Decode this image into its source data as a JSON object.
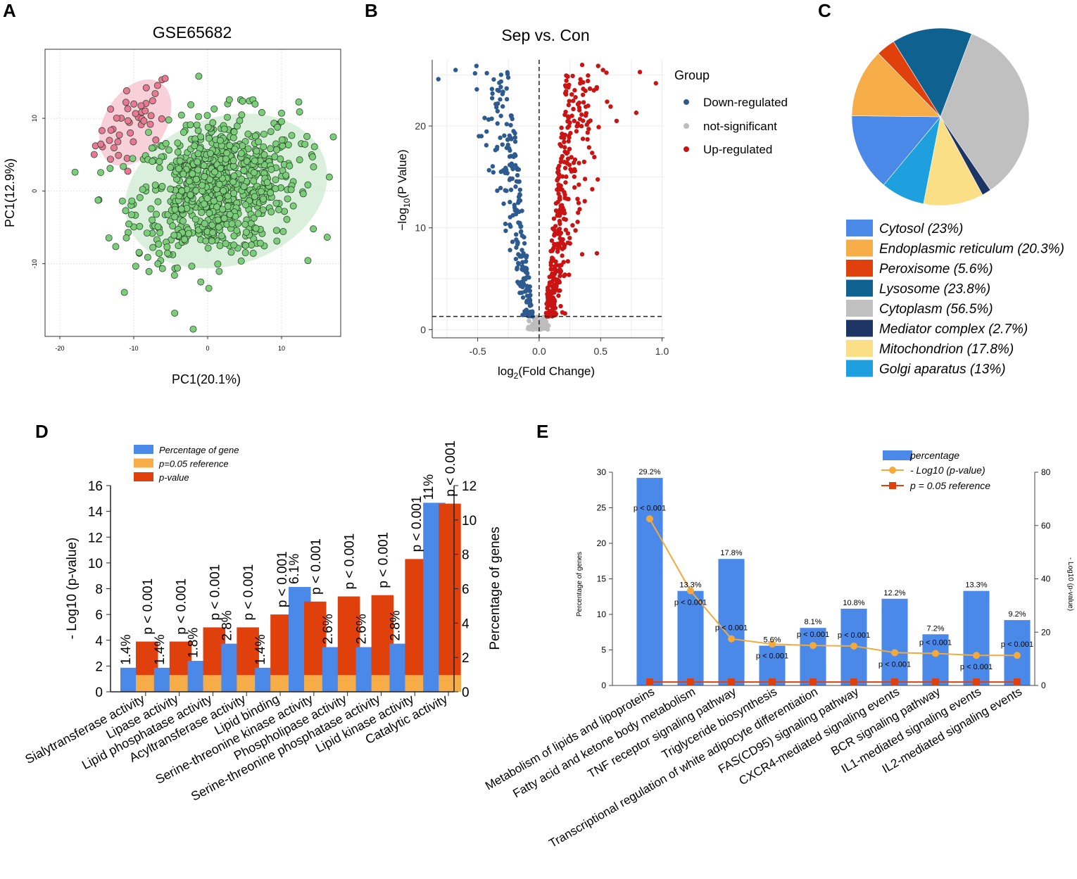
{
  "chart_data": [
    {
      "id": "A",
      "type": "scatter",
      "letter": "A",
      "title": "GSE65682",
      "xlabel": "PC1(20.1%)",
      "ylabel": "PC1(12.9%)",
      "xlim": [
        -22,
        18
      ],
      "ylim": [
        -20,
        19.5
      ],
      "xticks": [
        -20,
        -10,
        0,
        10
      ],
      "yticks": [
        10,
        0,
        -10
      ],
      "xtick_labels": [
        "-20",
        "-10",
        "0",
        "10"
      ],
      "ytick_labels": [
        "10",
        "0",
        "-10"
      ],
      "grid": true,
      "groups": [
        {
          "name": "pink cluster",
          "color": "#e87896",
          "ellipse_color": "#f4c0cc",
          "n_points": 45,
          "center": [
            -10,
            9.5
          ],
          "spread": [
            2.6,
            2.4
          ],
          "ellipse": {
            "cx": -9.8,
            "cy": 9.4,
            "rx": 6.4,
            "ry": 4.2,
            "angle_deg": 58
          }
        },
        {
          "name": "green cluster",
          "color": "#7ccc7c",
          "ellipse_color": "#cdebd1",
          "n_points": 760,
          "center": [
            1.2,
            0.5
          ],
          "spread": [
            5.5,
            4.8
          ],
          "ellipse": {
            "cx": 2.5,
            "cy": 0.0,
            "rx": 14.0,
            "ry": 10.2,
            "angle_deg": 18
          }
        }
      ]
    },
    {
      "id": "B",
      "type": "scatter",
      "letter": "B",
      "title": "Sep vs. Con",
      "xlabel": "log2(Fold Change)",
      "xlabel_main": "log",
      "xlabel_sub": "2",
      "xlabel_rest": "(Fold Change)",
      "ylabel": "-log10(P Value)",
      "ylabel_main": "−log",
      "ylabel_sub": "10",
      "ylabel_rest": "(P Value)",
      "xlim": [
        -0.87,
        1.02
      ],
      "ylim": [
        -0.8,
        26.5
      ],
      "xticks": [
        -0.5,
        0.0,
        0.5,
        1.0
      ],
      "xtick_labels": [
        "-0.5",
        "0.0",
        "0.5",
        "1.0"
      ],
      "yticks": [
        0,
        10,
        20
      ],
      "ytick_labels": [
        "0",
        "10",
        "20"
      ],
      "threshold_y": 1.3,
      "threshold_x": 0,
      "legend_title": "Group",
      "series": [
        {
          "name": "Down-regulated",
          "color": "#2e5b8f",
          "n_points": 230
        },
        {
          "name": "not-significant",
          "color": "#bdbdbd",
          "n_points": 80
        },
        {
          "name": "Up-regulated",
          "color": "#c91414",
          "n_points": 330
        }
      ],
      "outliers": [
        {
          "x": -0.82,
          "y": 24.6
        },
        {
          "x": -0.68,
          "y": 25.5
        },
        {
          "x": -0.51,
          "y": 25.9
        },
        {
          "x": -0.49,
          "y": 19.0
        },
        {
          "x": 0.35,
          "y": 26.0
        },
        {
          "x": 0.48,
          "y": 25.9
        },
        {
          "x": 0.52,
          "y": 25.5
        },
        {
          "x": 0.82,
          "y": 25.3
        },
        {
          "x": 0.95,
          "y": 24.2
        },
        {
          "x": 0.79,
          "y": 21.3
        },
        {
          "x": 0.63,
          "y": 20.5
        },
        {
          "x": 0.47,
          "y": 7.5
        },
        {
          "x": 0.35,
          "y": 7.4
        }
      ]
    },
    {
      "id": "C",
      "type": "pie",
      "letter": "C",
      "slices": [
        {
          "label": "Cytosol (23%)",
          "value": 23,
          "color": "#4a89e8"
        },
        {
          "label": "Endoplasmic reticulum (20.3%)",
          "value": 20.3,
          "color": "#f7ad47"
        },
        {
          "label": "Peroxisome (5.6%)",
          "value": 5.6,
          "color": "#e0400c"
        },
        {
          "label": "Lysosome (23.8%)",
          "value": 23.8,
          "color": "#0f6290"
        },
        {
          "label": "Cytoplasm (56.5%)",
          "value": 56.5,
          "color": "#c0c0c0"
        },
        {
          "label": "Mediator complex (2.7%)",
          "value": 2.7,
          "color": "#1d3564"
        },
        {
          "label": "Mitochondrion (17.8%)",
          "value": 17.8,
          "color": "#fbdf86"
        },
        {
          "label": "Golgi aparatus (13%)",
          "value": 13,
          "color": "#1ea0de"
        }
      ],
      "draw_order": [
        3,
        4,
        5,
        6,
        7,
        0,
        1,
        2
      ],
      "start_angle_deg": 238
    },
    {
      "id": "D",
      "type": "bar",
      "letter": "D",
      "categories": [
        "Sialytransferase activity",
        "Lipase activity",
        "Lipid phosphatase activity",
        "Acyltransferase activity",
        "Lipid binding",
        "Serine-threonine kinase activity",
        "Phospholipase activity",
        "Serine-threonine phosphatase activity",
        "Lipid kinase activity",
        "Catalytic activity"
      ],
      "pvalue_log10": [
        3.9,
        3.9,
        5.0,
        5.0,
        6.0,
        7.0,
        7.4,
        7.5,
        10.3,
        14.6
      ],
      "percentage": [
        1.4,
        1.4,
        1.8,
        2.8,
        1.4,
        6.1,
        2.6,
        2.6,
        2.8,
        11
      ],
      "percentage_labels": [
        "1.4%",
        "1.4%",
        "1.8%",
        "2.8%",
        "1.4%",
        "6.1%",
        "2.6%",
        "2.6%",
        "2.8%",
        "11%"
      ],
      "p_labels": [
        "p < 0.001",
        "p < 0.001",
        "p < 0.001",
        "p < 0.001",
        "p < 0.001",
        "p < 0.001",
        "p < 0.001",
        "p < 0.001",
        "p < 0.001",
        "p < 0.001"
      ],
      "reference_log10": 1.3,
      "ylabel_left": "- Log10 (p-value)",
      "ylabel_right": "Percentage of genes",
      "ylim_left": [
        0,
        16
      ],
      "ylim_right": [
        0,
        12
      ],
      "yticks_left": [
        0,
        2,
        4,
        6,
        8,
        10,
        12,
        14,
        16
      ],
      "yticks_right": [
        0,
        2,
        4,
        6,
        8,
        10,
        12
      ],
      "legend": [
        {
          "label": "Percentage of gene",
          "color": "#4a89e8"
        },
        {
          "label": "p=0.05 reference",
          "color": "#f7ad47"
        },
        {
          "label": "p-value",
          "color": "#e0400c"
        }
      ]
    },
    {
      "id": "E",
      "type": "bar",
      "letter": "E",
      "categories": [
        "Metabolism of lipids and lipoproteins",
        "Fatty acid and ketone body metabolism",
        "TNF receptor signaling pathway",
        "Triglyceride biosynthesis",
        "Transcriptional regulation of white adipocyte differentiation",
        "FAS(CD95) signaling pathway",
        "CXCR4-mediated signaling events",
        "BCR signaling pathway",
        "IL1-mediated signaling events",
        "IL2-mediated signaling events"
      ],
      "percentage": [
        29.2,
        13.3,
        17.8,
        5.6,
        8.1,
        10.8,
        12.2,
        7.2,
        13.3,
        9.2
      ],
      "percentage_labels": [
        "29.2%",
        "13.3%",
        "17.8%",
        "5.6%",
        "8.1%",
        "10.8%",
        "12.2%",
        "7.2%",
        "13.3%",
        "9.2%"
      ],
      "neg_log10_p": [
        62.5,
        35.5,
        17.5,
        15.5,
        15.0,
        14.8,
        12.3,
        12.0,
        11.3,
        11.3
      ],
      "p_labels": [
        "p < 0.001",
        "p < 0.001",
        "p < 0.001",
        "p < 0.001",
        "p < 0.001",
        "p < 0.001",
        "p < 0.001",
        "p < 0.001",
        "p < 0.001",
        "p < 0.001"
      ],
      "reference": 1.3,
      "ylabel_left": "Percentage of genes",
      "ylabel_right": "- Log10 (p-value)",
      "ylim_left": [
        0,
        30
      ],
      "ylim_right": [
        0,
        80
      ],
      "yticks_left": [
        0,
        5,
        10,
        15,
        20,
        25,
        30
      ],
      "yticks_right": [
        0,
        20,
        40,
        60,
        80
      ],
      "legend": [
        {
          "label": "percentage",
          "color": "#4a89e8"
        },
        {
          "label": "- Log10 (p-value)",
          "color": "#f5a93a"
        },
        {
          "label": "p = 0.05 reference",
          "color": "#e0400c"
        }
      ]
    }
  ]
}
